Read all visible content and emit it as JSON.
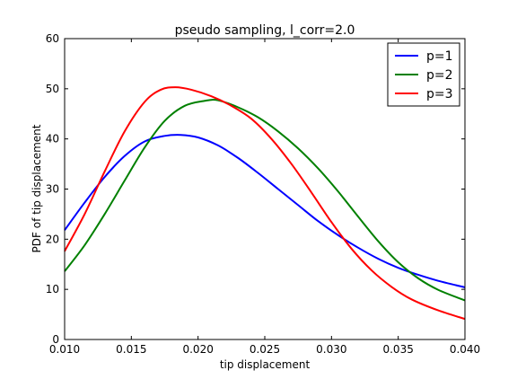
{
  "chart_data": {
    "type": "line",
    "title": "pseudo sampling, l_corr=2.0",
    "xlabel": "tip displacement",
    "ylabel": "PDF of tip displacement",
    "xlim": [
      0.01,
      0.04
    ],
    "ylim": [
      0,
      60
    ],
    "xticks": [
      "0.010",
      "0.015",
      "0.020",
      "0.025",
      "0.030",
      "0.035",
      "0.040"
    ],
    "yticks": [
      "0",
      "10",
      "20",
      "30",
      "40",
      "50",
      "60"
    ],
    "grid": false,
    "legend_position": "top-right",
    "series": [
      {
        "name": "p=1",
        "color": "#0000ff",
        "points": [
          [
            0.01,
            21.8
          ],
          [
            0.0115,
            27.3
          ],
          [
            0.013,
            32.4
          ],
          [
            0.0145,
            36.6
          ],
          [
            0.016,
            39.5
          ],
          [
            0.0175,
            40.6
          ],
          [
            0.0187,
            40.8
          ],
          [
            0.02,
            40.3
          ],
          [
            0.0215,
            38.7
          ],
          [
            0.023,
            36.2
          ],
          [
            0.0245,
            33.2
          ],
          [
            0.026,
            30.0
          ],
          [
            0.0275,
            26.8
          ],
          [
            0.029,
            23.6
          ],
          [
            0.0305,
            20.8
          ],
          [
            0.032,
            18.3
          ],
          [
            0.0335,
            16.1
          ],
          [
            0.035,
            14.3
          ],
          [
            0.0365,
            12.9
          ],
          [
            0.038,
            11.7
          ],
          [
            0.04,
            10.4
          ]
        ]
      },
      {
        "name": "p=2",
        "color": "#008000",
        "points": [
          [
            0.01,
            13.6
          ],
          [
            0.0115,
            18.8
          ],
          [
            0.013,
            25.0
          ],
          [
            0.0145,
            31.7
          ],
          [
            0.016,
            38.3
          ],
          [
            0.0175,
            43.6
          ],
          [
            0.019,
            46.6
          ],
          [
            0.0205,
            47.6
          ],
          [
            0.0215,
            47.7
          ],
          [
            0.023,
            46.3
          ],
          [
            0.0245,
            44.3
          ],
          [
            0.026,
            41.5
          ],
          [
            0.0275,
            38.1
          ],
          [
            0.029,
            34.1
          ],
          [
            0.0305,
            29.5
          ],
          [
            0.032,
            24.5
          ],
          [
            0.0335,
            19.6
          ],
          [
            0.035,
            15.4
          ],
          [
            0.0365,
            12.2
          ],
          [
            0.038,
            9.9
          ],
          [
            0.04,
            7.8
          ]
        ]
      },
      {
        "name": "p=3",
        "color": "#ff0000",
        "points": [
          [
            0.01,
            17.6
          ],
          [
            0.0115,
            25.0
          ],
          [
            0.013,
            33.5
          ],
          [
            0.0145,
            41.5
          ],
          [
            0.016,
            47.4
          ],
          [
            0.0172,
            49.8
          ],
          [
            0.0183,
            50.3
          ],
          [
            0.0195,
            49.8
          ],
          [
            0.021,
            48.5
          ],
          [
            0.0225,
            46.6
          ],
          [
            0.024,
            44.0
          ],
          [
            0.0255,
            40.0
          ],
          [
            0.027,
            35.0
          ],
          [
            0.0285,
            29.3
          ],
          [
            0.03,
            23.4
          ],
          [
            0.0315,
            18.1
          ],
          [
            0.033,
            13.8
          ],
          [
            0.0345,
            10.5
          ],
          [
            0.036,
            8.0
          ],
          [
            0.038,
            5.8
          ],
          [
            0.04,
            4.1
          ]
        ]
      }
    ]
  }
}
